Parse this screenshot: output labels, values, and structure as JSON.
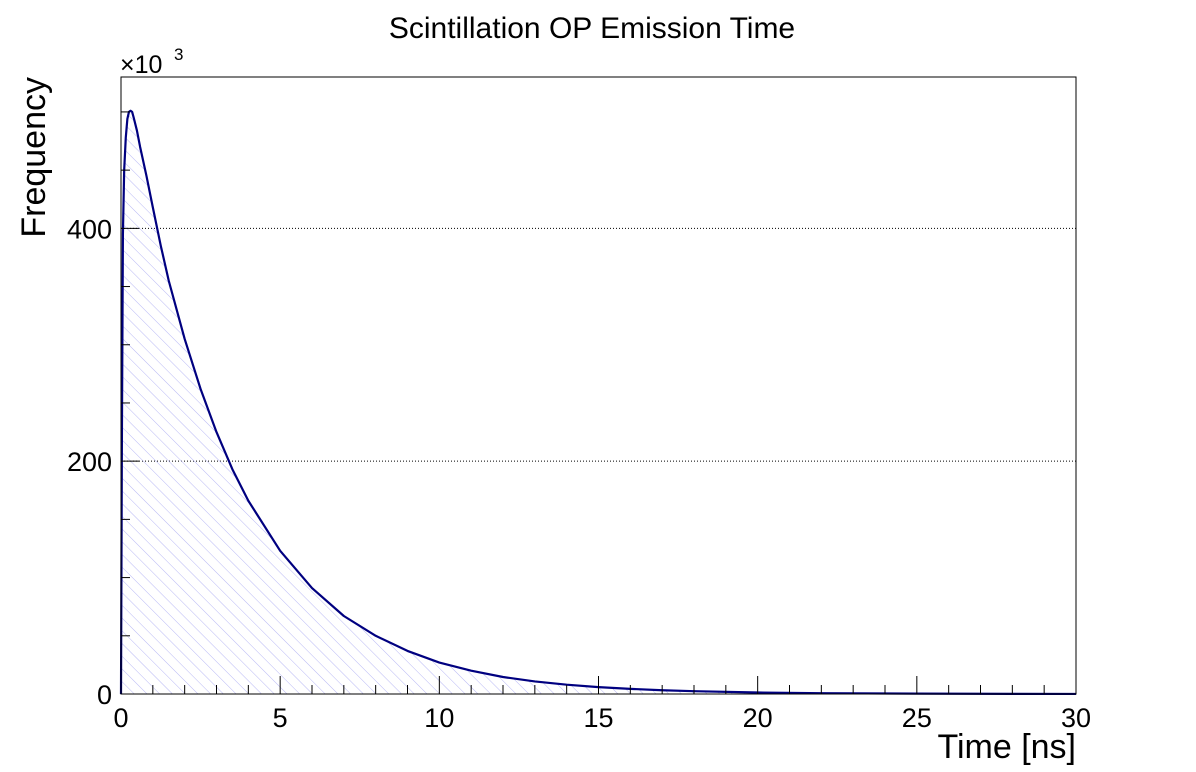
{
  "chart_data": {
    "type": "area",
    "title": "Scintillation OP Emission Time",
    "xlabel": "Time [ns]",
    "ylabel": "Frequency",
    "y_multiplier": {
      "base": "×10",
      "exponent": "3"
    },
    "xlim": [
      0,
      30
    ],
    "ylim": [
      0,
      530
    ],
    "x_ticks": [
      0,
      5,
      10,
      15,
      20,
      25,
      30
    ],
    "x_tick_labels": [
      "0",
      "5",
      "10",
      "15",
      "20",
      "25",
      "30"
    ],
    "y_ticks": [
      0,
      200,
      400
    ],
    "y_tick_labels": [
      "0",
      "200",
      "400"
    ],
    "grid": {
      "x": false,
      "y": true,
      "style": "dotted"
    },
    "fill": "hatched",
    "series": [
      {
        "line_color": "#000080",
        "fill_color": "#c8c8ff",
        "x": [
          0,
          0.03,
          0.06,
          0.1,
          0.15,
          0.2,
          0.25,
          0.3,
          0.35,
          0.4,
          0.5,
          0.6,
          0.8,
          1.0,
          1.25,
          1.5,
          2.0,
          2.5,
          3.0,
          3.5,
          4.0,
          5.0,
          6.0,
          7.0,
          8.0,
          9.0,
          10.0,
          11.0,
          12.0,
          13.0,
          14.0,
          15.0,
          16.0,
          17.0,
          18.0,
          20.0,
          22.0,
          25.0,
          28.0,
          30.0
        ],
        "y": [
          0,
          230,
          395,
          450,
          478,
          494,
          500,
          501,
          500,
          495,
          484,
          470,
          445,
          418,
          385,
          355,
          305,
          262,
          225,
          193,
          166,
          123,
          91,
          67,
          50,
          37,
          27,
          20,
          14.6,
          10.8,
          8.0,
          5.9,
          4.4,
          3.2,
          2.4,
          1.3,
          0.7,
          0.3,
          0.1,
          0.05
        ]
      }
    ]
  }
}
